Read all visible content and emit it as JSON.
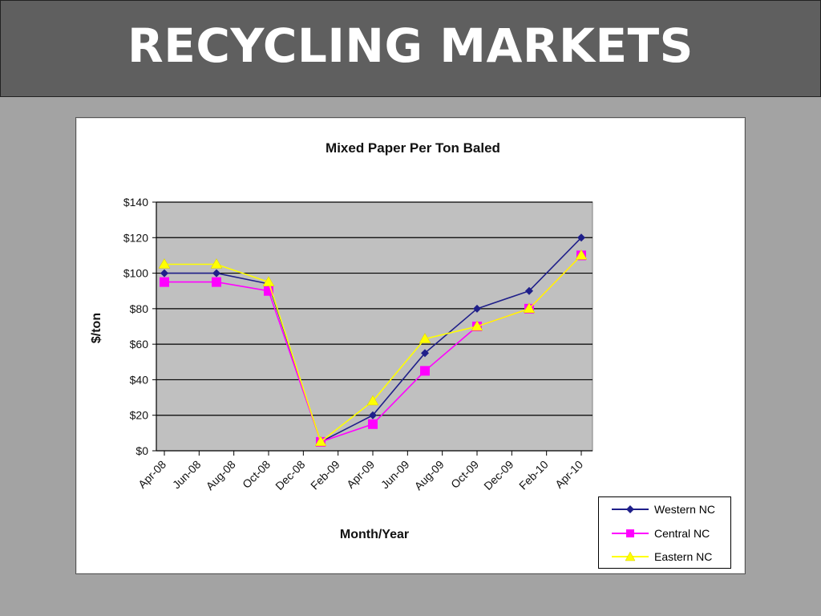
{
  "slide": {
    "title": "RECYCLING MARKETS"
  },
  "chart_data": {
    "type": "line",
    "title": "Mixed Paper Per Ton Baled",
    "xlabel": "Month/Year",
    "ylabel": "$/ton",
    "ylim": [
      0,
      140
    ],
    "yticks": [
      "$0",
      "$20",
      "$40",
      "$60",
      "$80",
      "$100",
      "$120",
      "$140"
    ],
    "xticks": [
      "Apr-08",
      "Jun-08",
      "Aug-08",
      "Oct-08",
      "Dec-08",
      "Feb-09",
      "Apr-09",
      "Jun-09",
      "Aug-09",
      "Oct-09",
      "Dec-09",
      "Feb-10",
      "Apr-10"
    ],
    "grid": true,
    "legend_position": "bottom-right",
    "series": [
      {
        "name": "Western NC",
        "color": "#1f1f8a",
        "marker": "diamond",
        "points": [
          {
            "x": "Apr-08",
            "y": 100
          },
          {
            "x": "Jul-08",
            "y": 100
          },
          {
            "x": "Oct-08",
            "y": 94
          },
          {
            "x": "Jan-09",
            "y": 5
          },
          {
            "x": "Apr-09",
            "y": 20
          },
          {
            "x": "Jul-09",
            "y": 55
          },
          {
            "x": "Oct-09",
            "y": 80
          },
          {
            "x": "Jan-10",
            "y": 90
          },
          {
            "x": "Apr-10",
            "y": 120
          }
        ]
      },
      {
        "name": "Central NC",
        "color": "#ff00ff",
        "marker": "square",
        "points": [
          {
            "x": "Apr-08",
            "y": 95
          },
          {
            "x": "Jul-08",
            "y": 95
          },
          {
            "x": "Oct-08",
            "y": 90
          },
          {
            "x": "Jan-09",
            "y": 5
          },
          {
            "x": "Apr-09",
            "y": 15
          },
          {
            "x": "Jul-09",
            "y": 45
          },
          {
            "x": "Oct-09",
            "y": 70
          },
          {
            "x": "Jan-10",
            "y": 80
          },
          {
            "x": "Apr-10",
            "y": 110
          }
        ]
      },
      {
        "name": "Eastern NC",
        "color": "#ffff00",
        "marker": "triangle",
        "points": [
          {
            "x": "Apr-08",
            "y": 105
          },
          {
            "x": "Jul-08",
            "y": 105
          },
          {
            "x": "Oct-08",
            "y": 95
          },
          {
            "x": "Jan-09",
            "y": 5
          },
          {
            "x": "Apr-09",
            "y": 28
          },
          {
            "x": "Jul-09",
            "y": 63
          },
          {
            "x": "Oct-09",
            "y": 70
          },
          {
            "x": "Jan-10",
            "y": 80
          },
          {
            "x": "Apr-10",
            "y": 110
          }
        ]
      }
    ]
  }
}
